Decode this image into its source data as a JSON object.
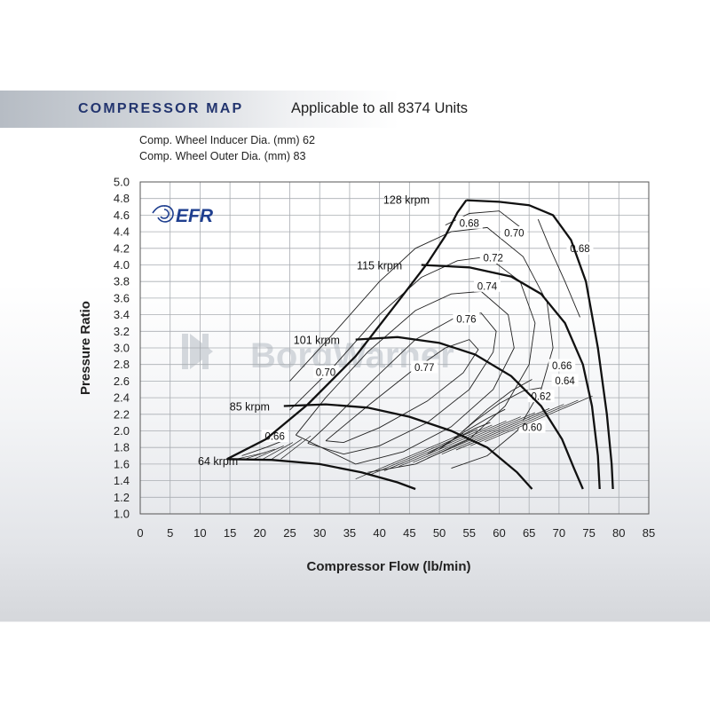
{
  "header": {
    "title": "COMPRESSOR MAP",
    "subtitle": "Applicable to all 8374 Units"
  },
  "specs": {
    "inducer": "Comp. Wheel Inducer Dia. (mm) 62",
    "outer": "Comp. Wheel Outer Dia. (mm) 83"
  },
  "logo": {
    "text": "EFR",
    "icon": "efr-swirl-icon",
    "color": "#1f3f8f"
  },
  "watermark": {
    "text": "BorgWarner"
  },
  "chart_data": {
    "type": "line",
    "xlabel": "Compressor Flow (lb/min)",
    "ylabel": "Pressure Ratio",
    "xlim": [
      0,
      85
    ],
    "ylim": [
      1.0,
      5.0
    ],
    "xticks": [
      0,
      5,
      10,
      15,
      20,
      25,
      30,
      35,
      40,
      45,
      50,
      55,
      60,
      65,
      70,
      75,
      80,
      85
    ],
    "yticks": [
      1.0,
      1.2,
      1.4,
      1.6,
      1.8,
      2.0,
      2.2,
      2.4,
      2.6,
      2.8,
      3.0,
      3.2,
      3.4,
      3.6,
      3.8,
      4.0,
      4.2,
      4.4,
      4.6,
      4.8,
      5.0
    ],
    "grid": true,
    "surge_line": [
      [
        14.5,
        1.66
      ],
      [
        21,
        1.9
      ],
      [
        28,
        2.32
      ],
      [
        36,
        2.9
      ],
      [
        43,
        3.55
      ],
      [
        48,
        4.02
      ],
      [
        51,
        4.35
      ],
      [
        53,
        4.63
      ],
      [
        54.5,
        4.78
      ]
    ],
    "speed_lines": [
      {
        "label": "64 krpm",
        "points": [
          [
            14.5,
            1.66
          ],
          [
            22,
            1.65
          ],
          [
            30,
            1.6
          ],
          [
            37,
            1.5
          ],
          [
            43,
            1.38
          ],
          [
            46,
            1.3
          ]
        ]
      },
      {
        "label": "85 krpm",
        "points": [
          [
            24,
            2.3
          ],
          [
            31,
            2.32
          ],
          [
            38,
            2.28
          ],
          [
            45,
            2.17
          ],
          [
            52,
            2.0
          ],
          [
            58,
            1.8
          ],
          [
            63,
            1.5
          ],
          [
            65.5,
            1.3
          ]
        ]
      },
      {
        "label": "101 krpm",
        "points": [
          [
            36,
            3.1
          ],
          [
            43,
            3.13
          ],
          [
            50,
            3.06
          ],
          [
            56,
            2.92
          ],
          [
            62,
            2.66
          ],
          [
            67,
            2.3
          ],
          [
            70.5,
            1.9
          ],
          [
            72.5,
            1.55
          ],
          [
            74,
            1.3
          ]
        ]
      },
      {
        "label": "115 krpm",
        "points": [
          [
            47,
            4.0
          ],
          [
            55,
            3.97
          ],
          [
            62,
            3.86
          ],
          [
            67,
            3.65
          ],
          [
            71,
            3.3
          ],
          [
            74,
            2.8
          ],
          [
            75.5,
            2.3
          ],
          [
            76.5,
            1.7
          ],
          [
            76.8,
            1.3
          ]
        ]
      },
      {
        "label": "128 krpm",
        "points": [
          [
            54.5,
            4.78
          ],
          [
            60,
            4.76
          ],
          [
            65,
            4.72
          ],
          [
            69,
            4.6
          ],
          [
            72,
            4.3
          ],
          [
            74.5,
            3.8
          ],
          [
            76.5,
            3.0
          ],
          [
            78,
            2.2
          ],
          [
            78.8,
            1.6
          ],
          [
            79,
            1.3
          ]
        ]
      }
    ],
    "efficiency_islands": [
      {
        "label": "0.77",
        "points": [
          [
            31,
            1.88
          ],
          [
            33,
            2.0
          ],
          [
            38,
            2.3
          ],
          [
            45,
            2.7
          ],
          [
            51,
            3.0
          ],
          [
            55,
            3.1
          ],
          [
            56.5,
            2.98
          ],
          [
            54,
            2.7
          ],
          [
            48,
            2.36
          ],
          [
            40,
            2.04
          ],
          [
            34,
            1.86
          ],
          [
            31,
            1.88
          ]
        ]
      },
      {
        "label": "0.76",
        "points": [
          [
            28,
            1.85
          ],
          [
            31,
            2.05
          ],
          [
            38,
            2.55
          ],
          [
            46,
            3.1
          ],
          [
            53,
            3.38
          ],
          [
            57,
            3.42
          ],
          [
            59.5,
            3.2
          ],
          [
            59,
            2.95
          ],
          [
            55,
            2.5
          ],
          [
            48,
            2.1
          ],
          [
            40,
            1.82
          ],
          [
            34,
            1.72
          ],
          [
            28,
            1.85
          ]
        ]
      },
      {
        "label": "0.74",
        "points": [
          [
            26,
            1.95
          ],
          [
            31,
            2.4
          ],
          [
            38,
            2.95
          ],
          [
            46,
            3.45
          ],
          [
            52,
            3.65
          ],
          [
            57,
            3.68
          ],
          [
            61.5,
            3.4
          ],
          [
            62.5,
            3.0
          ],
          [
            59,
            2.5
          ],
          [
            52,
            2.05
          ],
          [
            44,
            1.75
          ],
          [
            36,
            1.6
          ],
          [
            26,
            1.95
          ]
        ]
      },
      {
        "label": "0.72",
        "points": [
          [
            25,
            2.25
          ],
          [
            32,
            2.75
          ],
          [
            40,
            3.4
          ],
          [
            47,
            3.85
          ],
          [
            53,
            4.05
          ],
          [
            58,
            4.1
          ],
          [
            63.5,
            3.8
          ],
          [
            66,
            3.3
          ],
          [
            65,
            2.8
          ],
          [
            61,
            2.3
          ],
          [
            55,
            1.9
          ],
          [
            46,
            1.6
          ],
          [
            38,
            1.5
          ]
        ]
      },
      {
        "label": "0.70",
        "points": [
          [
            25,
            2.6
          ],
          [
            32,
            3.15
          ],
          [
            40,
            3.8
          ],
          [
            46,
            4.2
          ],
          [
            52,
            4.4
          ],
          [
            58,
            4.45
          ],
          [
            64,
            4.1
          ],
          [
            68,
            3.55
          ],
          [
            69,
            3.0
          ],
          [
            67,
            2.5
          ],
          [
            63,
            2.0
          ],
          [
            58,
            1.7
          ],
          [
            52,
            1.55
          ]
        ]
      },
      {
        "label": "0.68",
        "points": [
          [
            51,
            4.48
          ],
          [
            55,
            4.62
          ],
          [
            60,
            4.65
          ],
          [
            64.5,
            4.4
          ]
        ]
      },
      {
        "label": "0.68",
        "points": [
          [
            66.5,
            4.55
          ],
          [
            68.5,
            4.2
          ],
          [
            71,
            3.8
          ],
          [
            73.5,
            3.37
          ]
        ]
      },
      {
        "label": "0.66",
        "points": [
          [
            54,
            2.0
          ],
          [
            58,
            2.26
          ],
          [
            62,
            2.48
          ],
          [
            65.5,
            2.62
          ]
        ]
      },
      {
        "label": "0.66",
        "points": [
          [
            17,
            1.7
          ],
          [
            21,
            1.8
          ],
          [
            24.5,
            1.9
          ]
        ]
      },
      {
        "label": "0.64",
        "points": [
          [
            52,
            1.88
          ],
          [
            56,
            2.12
          ],
          [
            60,
            2.33
          ],
          [
            64,
            2.48
          ],
          [
            67,
            2.52
          ]
        ]
      },
      {
        "label": "0.62",
        "points": [
          [
            50,
            1.78
          ],
          [
            54,
            1.98
          ],
          [
            58,
            2.15
          ],
          [
            61,
            2.26
          ]
        ]
      },
      {
        "label": "0.60",
        "points": [
          [
            48,
            1.72
          ],
          [
            52,
            1.88
          ],
          [
            56,
            2.03
          ],
          [
            58.5,
            2.1
          ]
        ]
      }
    ]
  }
}
